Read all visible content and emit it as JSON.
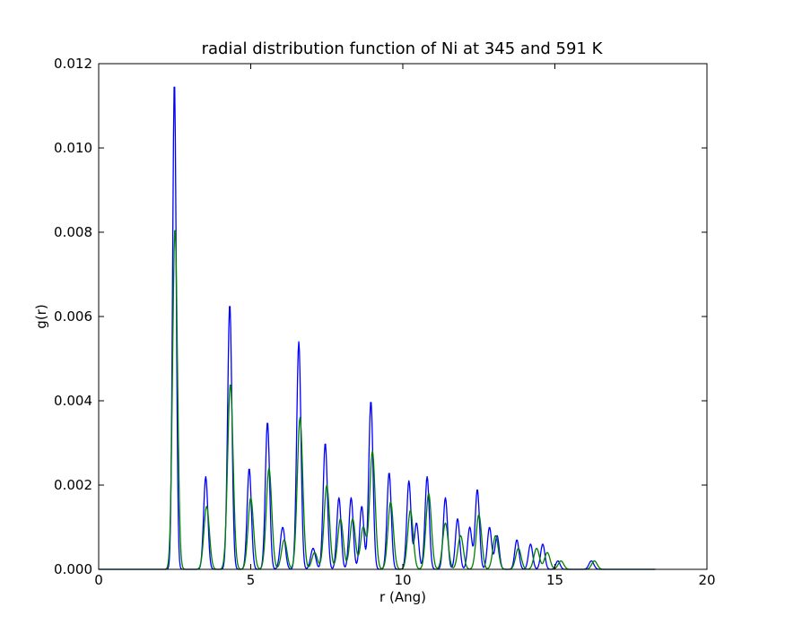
{
  "chart_data": {
    "type": "line",
    "title": "radial distribution function of Ni at 345 and 591 K",
    "xlabel": "r (Ang)",
    "ylabel": "g(r)",
    "xlim": [
      0,
      20
    ],
    "ylim": [
      0,
      0.012
    ],
    "x_ticks": [
      "0",
      "5",
      "10",
      "15",
      "20"
    ],
    "y_ticks": [
      "0.000",
      "0.002",
      "0.004",
      "0.006",
      "0.008",
      "0.010",
      "0.012"
    ],
    "grid": false,
    "legend": "none",
    "series": [
      {
        "color": "#0000ff",
        "peaks": [
          {
            "r": 2.49,
            "g": 0.0116,
            "w": 0.06
          },
          {
            "r": 3.52,
            "g": 0.0022,
            "w": 0.07
          },
          {
            "r": 4.31,
            "g": 0.0063,
            "w": 0.07
          },
          {
            "r": 4.95,
            "g": 0.0024,
            "w": 0.07
          },
          {
            "r": 5.55,
            "g": 0.0035,
            "w": 0.07
          },
          {
            "r": 6.05,
            "g": 0.001,
            "w": 0.08
          },
          {
            "r": 6.58,
            "g": 0.0054,
            "w": 0.07
          },
          {
            "r": 7.05,
            "g": 0.0005,
            "w": 0.08
          },
          {
            "r": 7.45,
            "g": 0.003,
            "w": 0.07
          },
          {
            "r": 7.9,
            "g": 0.0017,
            "w": 0.07
          },
          {
            "r": 8.3,
            "g": 0.0017,
            "w": 0.07
          },
          {
            "r": 8.65,
            "g": 0.0015,
            "w": 0.07
          },
          {
            "r": 8.95,
            "g": 0.004,
            "w": 0.07
          },
          {
            "r": 9.55,
            "g": 0.0023,
            "w": 0.07
          },
          {
            "r": 10.2,
            "g": 0.0021,
            "w": 0.07
          },
          {
            "r": 10.45,
            "g": 0.0011,
            "w": 0.07
          },
          {
            "r": 10.8,
            "g": 0.0022,
            "w": 0.07
          },
          {
            "r": 11.4,
            "g": 0.0017,
            "w": 0.07
          },
          {
            "r": 11.8,
            "g": 0.0012,
            "w": 0.07
          },
          {
            "r": 12.2,
            "g": 0.001,
            "w": 0.07
          },
          {
            "r": 12.45,
            "g": 0.0019,
            "w": 0.07
          },
          {
            "r": 12.85,
            "g": 0.001,
            "w": 0.07
          },
          {
            "r": 13.1,
            "g": 0.0008,
            "w": 0.07
          },
          {
            "r": 13.75,
            "g": 0.0007,
            "w": 0.07
          },
          {
            "r": 14.2,
            "g": 0.0006,
            "w": 0.07
          },
          {
            "r": 14.6,
            "g": 0.0006,
            "w": 0.07
          },
          {
            "r": 15.1,
            "g": 0.0002,
            "w": 0.07
          },
          {
            "r": 16.2,
            "g": 0.0002,
            "w": 0.08
          }
        ]
      },
      {
        "color": "#008000",
        "peaks": [
          {
            "r": 2.51,
            "g": 0.0081,
            "w": 0.08
          },
          {
            "r": 3.55,
            "g": 0.0015,
            "w": 0.09
          },
          {
            "r": 4.33,
            "g": 0.0044,
            "w": 0.09
          },
          {
            "r": 5.0,
            "g": 0.0017,
            "w": 0.09
          },
          {
            "r": 5.6,
            "g": 0.0024,
            "w": 0.09
          },
          {
            "r": 6.1,
            "g": 0.0007,
            "w": 0.09
          },
          {
            "r": 6.62,
            "g": 0.0036,
            "w": 0.09
          },
          {
            "r": 7.1,
            "g": 0.0004,
            "w": 0.09
          },
          {
            "r": 7.5,
            "g": 0.002,
            "w": 0.09
          },
          {
            "r": 7.95,
            "g": 0.0012,
            "w": 0.09
          },
          {
            "r": 8.35,
            "g": 0.0012,
            "w": 0.09
          },
          {
            "r": 8.7,
            "g": 0.001,
            "w": 0.09
          },
          {
            "r": 9.0,
            "g": 0.0028,
            "w": 0.09
          },
          {
            "r": 9.6,
            "g": 0.0016,
            "w": 0.09
          },
          {
            "r": 10.25,
            "g": 0.0014,
            "w": 0.09
          },
          {
            "r": 10.85,
            "g": 0.0018,
            "w": 0.09
          },
          {
            "r": 11.4,
            "g": 0.0011,
            "w": 0.09
          },
          {
            "r": 11.9,
            "g": 0.0008,
            "w": 0.09
          },
          {
            "r": 12.5,
            "g": 0.0013,
            "w": 0.09
          },
          {
            "r": 13.05,
            "g": 0.0008,
            "w": 0.09
          },
          {
            "r": 13.8,
            "g": 0.0005,
            "w": 0.09
          },
          {
            "r": 14.4,
            "g": 0.0005,
            "w": 0.09
          },
          {
            "r": 14.75,
            "g": 0.0004,
            "w": 0.09
          },
          {
            "r": 15.2,
            "g": 0.0002,
            "w": 0.09
          },
          {
            "r": 16.3,
            "g": 0.0002,
            "w": 0.09
          }
        ]
      }
    ]
  }
}
